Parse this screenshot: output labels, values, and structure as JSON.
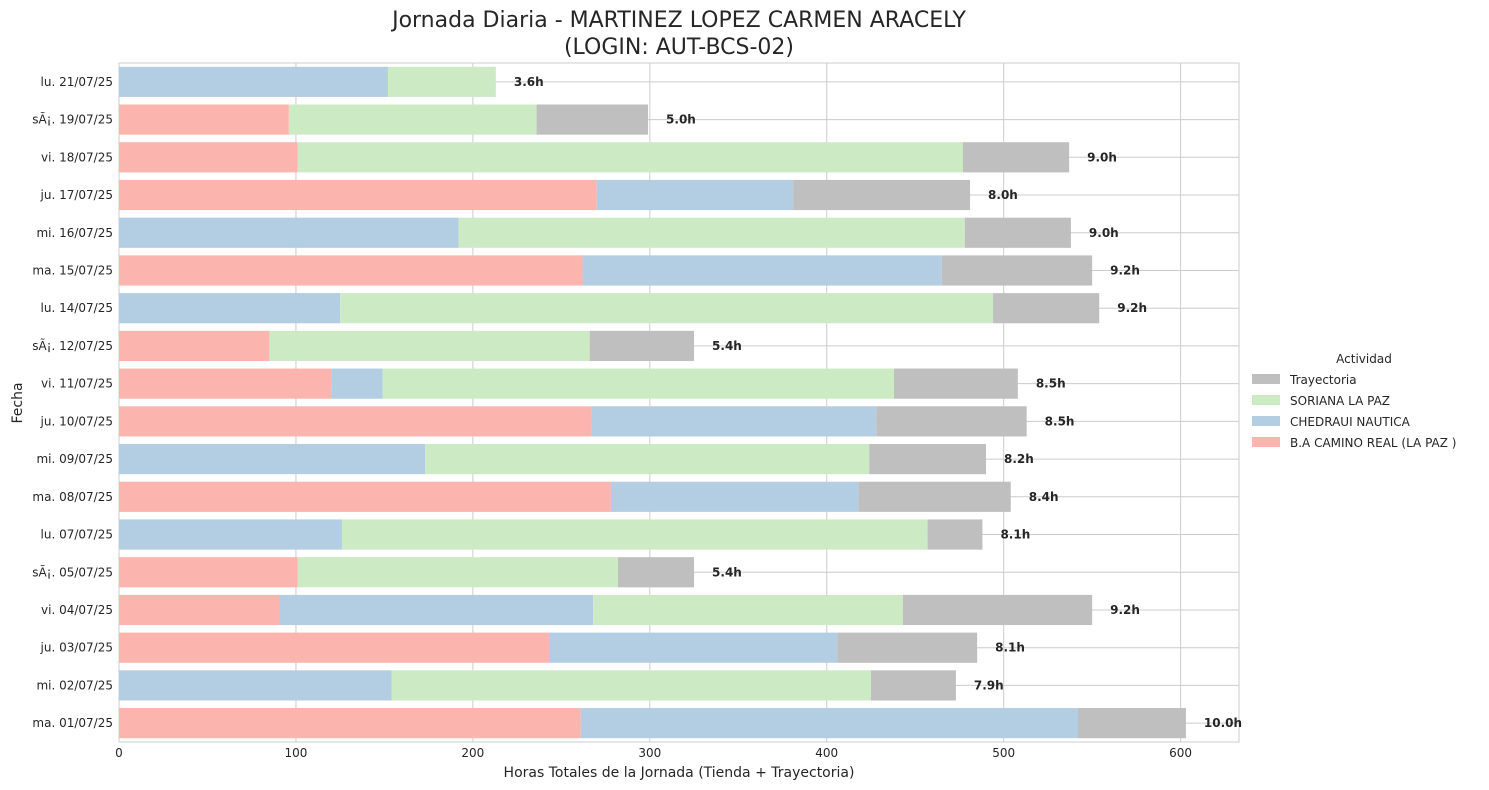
{
  "chart_data": {
    "type": "bar",
    "orientation": "horizontal",
    "stacked": true,
    "title_line1": "Jornada Diaria - MARTINEZ LOPEZ CARMEN ARACELY",
    "title_line2": "(LOGIN: AUT-BCS-02)",
    "xlabel": "Horas Totales de la Jornada (Tienda + Trayectoria)",
    "ylabel": "Fecha",
    "xlim": [
      0,
      633
    ],
    "xticks": [
      0,
      100,
      200,
      300,
      400,
      500,
      600
    ],
    "grid": true,
    "legend": {
      "title": "Actividad",
      "placement": "right",
      "entries": [
        "Trayectoria",
        "SORIANA LA PAZ",
        "CHEDRAUI NAUTICA",
        "B.A CAMINO REAL (LA PAZ )"
      ]
    },
    "colors": {
      "Trayectoria": "#bfbfbf",
      "SORIANA LA PAZ": "#ccebc5",
      "CHEDRAUI NAUTICA": "#b3cde3",
      "B.A CAMINO REAL (LA PAZ )": "#fbb4ae"
    },
    "categories": [
      "lu. 21/07/25",
      "sÃ¡. 19/07/25",
      "vi. 18/07/25",
      "ju. 17/07/25",
      "mi. 16/07/25",
      "ma. 15/07/25",
      "lu. 14/07/25",
      "sÃ¡. 12/07/25",
      "vi. 11/07/25",
      "ju. 10/07/25",
      "mi. 09/07/25",
      "ma. 08/07/25",
      "lu. 07/07/25",
      "sÃ¡. 05/07/25",
      "vi. 04/07/25",
      "ju. 03/07/25",
      "mi. 02/07/25",
      "ma. 01/07/25"
    ],
    "rows": [
      {
        "segments": [
          {
            "name": "CHEDRAUI NAUTICA",
            "value": 152
          },
          {
            "name": "SORIANA LA PAZ",
            "value": 61
          }
        ],
        "total_label": "3.6h"
      },
      {
        "segments": [
          {
            "name": "B.A CAMINO REAL (LA PAZ )",
            "value": 96
          },
          {
            "name": "SORIANA LA PAZ",
            "value": 140
          },
          {
            "name": "Trayectoria",
            "value": 63
          }
        ],
        "total_label": "5.0h"
      },
      {
        "segments": [
          {
            "name": "B.A CAMINO REAL (LA PAZ )",
            "value": 101
          },
          {
            "name": "SORIANA LA PAZ",
            "value": 376
          },
          {
            "name": "Trayectoria",
            "value": 60
          }
        ],
        "total_label": "9.0h"
      },
      {
        "segments": [
          {
            "name": "B.A CAMINO REAL (LA PAZ )",
            "value": 270
          },
          {
            "name": "CHEDRAUI NAUTICA",
            "value": 111
          },
          {
            "name": "Trayectoria",
            "value": 100
          }
        ],
        "total_label": "8.0h"
      },
      {
        "segments": [
          {
            "name": "CHEDRAUI NAUTICA",
            "value": 192
          },
          {
            "name": "SORIANA LA PAZ",
            "value": 286
          },
          {
            "name": "Trayectoria",
            "value": 60
          }
        ],
        "total_label": "9.0h"
      },
      {
        "segments": [
          {
            "name": "B.A CAMINO REAL (LA PAZ )",
            "value": 262
          },
          {
            "name": "CHEDRAUI NAUTICA",
            "value": 203
          },
          {
            "name": "Trayectoria",
            "value": 85
          }
        ],
        "total_label": "9.2h"
      },
      {
        "segments": [
          {
            "name": "CHEDRAUI NAUTICA",
            "value": 125
          },
          {
            "name": "SORIANA LA PAZ",
            "value": 369
          },
          {
            "name": "Trayectoria",
            "value": 60
          }
        ],
        "total_label": "9.2h"
      },
      {
        "segments": [
          {
            "name": "B.A CAMINO REAL (LA PAZ )",
            "value": 85
          },
          {
            "name": "SORIANA LA PAZ",
            "value": 181
          },
          {
            "name": "Trayectoria",
            "value": 59
          }
        ],
        "total_label": "5.4h"
      },
      {
        "segments": [
          {
            "name": "B.A CAMINO REAL (LA PAZ )",
            "value": 120
          },
          {
            "name": "CHEDRAUI NAUTICA",
            "value": 29
          },
          {
            "name": "SORIANA LA PAZ",
            "value": 289
          },
          {
            "name": "Trayectoria",
            "value": 70
          }
        ],
        "total_label": "8.5h"
      },
      {
        "segments": [
          {
            "name": "B.A CAMINO REAL (LA PAZ )",
            "value": 267
          },
          {
            "name": "CHEDRAUI NAUTICA",
            "value": 161
          },
          {
            "name": "Trayectoria",
            "value": 85
          }
        ],
        "total_label": "8.5h"
      },
      {
        "segments": [
          {
            "name": "CHEDRAUI NAUTICA",
            "value": 173
          },
          {
            "name": "SORIANA LA PAZ",
            "value": 251
          },
          {
            "name": "Trayectoria",
            "value": 66
          }
        ],
        "total_label": "8.2h"
      },
      {
        "segments": [
          {
            "name": "B.A CAMINO REAL (LA PAZ )",
            "value": 278
          },
          {
            "name": "CHEDRAUI NAUTICA",
            "value": 140
          },
          {
            "name": "Trayectoria",
            "value": 86
          }
        ],
        "total_label": "8.4h"
      },
      {
        "segments": [
          {
            "name": "CHEDRAUI NAUTICA",
            "value": 126
          },
          {
            "name": "SORIANA LA PAZ",
            "value": 331
          },
          {
            "name": "Trayectoria",
            "value": 31
          }
        ],
        "total_label": "8.1h"
      },
      {
        "segments": [
          {
            "name": "B.A CAMINO REAL (LA PAZ )",
            "value": 101
          },
          {
            "name": "SORIANA LA PAZ",
            "value": 181
          },
          {
            "name": "Trayectoria",
            "value": 43
          }
        ],
        "total_label": "5.4h"
      },
      {
        "segments": [
          {
            "name": "B.A CAMINO REAL (LA PAZ )",
            "value": 91
          },
          {
            "name": "CHEDRAUI NAUTICA",
            "value": 177
          },
          {
            "name": "SORIANA LA PAZ",
            "value": 175
          },
          {
            "name": "Trayectoria",
            "value": 107
          }
        ],
        "total_label": "9.2h"
      },
      {
        "segments": [
          {
            "name": "B.A CAMINO REAL (LA PAZ )",
            "value": 243
          },
          {
            "name": "CHEDRAUI NAUTICA",
            "value": 163
          },
          {
            "name": "Trayectoria",
            "value": 79
          }
        ],
        "total_label": "8.1h"
      },
      {
        "segments": [
          {
            "name": "CHEDRAUI NAUTICA",
            "value": 154
          },
          {
            "name": "SORIANA LA PAZ",
            "value": 271
          },
          {
            "name": "Trayectoria",
            "value": 48
          }
        ],
        "total_label": "7.9h"
      },
      {
        "segments": [
          {
            "name": "B.A CAMINO REAL (LA PAZ )",
            "value": 261
          },
          {
            "name": "CHEDRAUI NAUTICA",
            "value": 281
          },
          {
            "name": "Trayectoria",
            "value": 61
          }
        ],
        "total_label": "10.0h"
      }
    ]
  }
}
